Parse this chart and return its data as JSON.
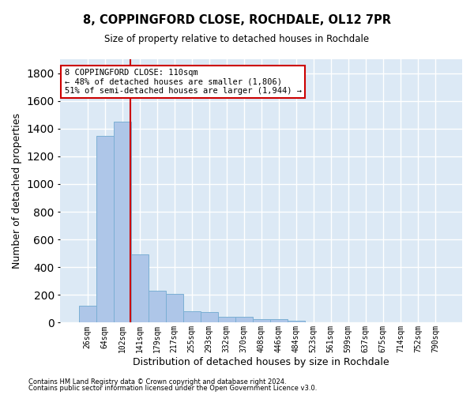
{
  "title1": "8, COPPINGFORD CLOSE, ROCHDALE, OL12 7PR",
  "title2": "Size of property relative to detached houses in Rochdale",
  "xlabel": "Distribution of detached houses by size in Rochdale",
  "ylabel": "Number of detached properties",
  "bar_labels": [
    "26sqm",
    "64sqm",
    "102sqm",
    "141sqm",
    "179sqm",
    "217sqm",
    "255sqm",
    "293sqm",
    "332sqm",
    "370sqm",
    "408sqm",
    "446sqm",
    "484sqm",
    "523sqm",
    "561sqm",
    "599sqm",
    "637sqm",
    "675sqm",
    "714sqm",
    "752sqm",
    "790sqm"
  ],
  "bar_values": [
    120,
    1350,
    1450,
    490,
    230,
    205,
    80,
    75,
    45,
    45,
    25,
    25,
    12,
    0,
    0,
    0,
    0,
    0,
    0,
    0,
    0
  ],
  "bar_color": "#aec6e8",
  "bar_edge_color": "#7bafd4",
  "background_color": "#dce9f5",
  "grid_color": "#ffffff",
  "vline_x": 2.48,
  "vline_color": "#cc0000",
  "annotation_text": "8 COPPINGFORD CLOSE: 110sqm\n← 48% of detached houses are smaller (1,806)\n51% of semi-detached houses are larger (1,944) →",
  "annotation_box_color": "#ffffff",
  "annotation_box_edge": "#cc0000",
  "footer1": "Contains HM Land Registry data © Crown copyright and database right 2024.",
  "footer2": "Contains public sector information licensed under the Open Government Licence v3.0.",
  "ylim": [
    0,
    1900
  ],
  "yticks": [
    0,
    200,
    400,
    600,
    800,
    1000,
    1200,
    1400,
    1600,
    1800
  ]
}
